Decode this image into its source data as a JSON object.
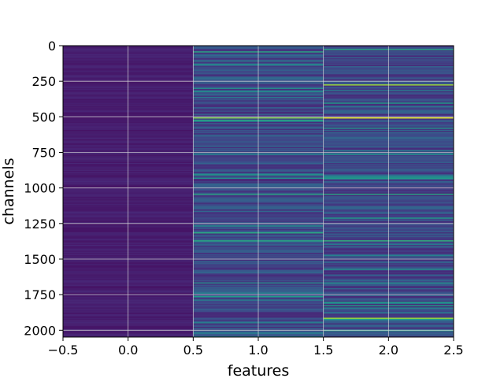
{
  "chart_data": {
    "type": "heatmap",
    "title": "",
    "xlabel": "features",
    "ylabel": "channels",
    "colormap": "viridis",
    "grid": true,
    "grid_color": "#d9d9d9",
    "xlim": [
      -0.5,
      2.5
    ],
    "ylim": [
      2048,
      0
    ],
    "x_ticks": [
      -0.5,
      0.0,
      0.5,
      1.0,
      1.5,
      2.0,
      2.5
    ],
    "x_tick_labels": [
      "−0.5",
      "0.0",
      "0.5",
      "1.0",
      "1.5",
      "2.0",
      "2.5"
    ],
    "y_ticks": [
      0,
      250,
      500,
      750,
      1000,
      1250,
      1500,
      1750,
      2000
    ],
    "y_tick_labels": [
      "0",
      "250",
      "500",
      "750",
      "1000",
      "1250",
      "1500",
      "1750",
      "2000"
    ],
    "columns": [
      {
        "feature": 0,
        "base_level": 0.08,
        "highlights": []
      },
      {
        "feature": 1,
        "base_level": 0.22,
        "highlights": [
          {
            "channel": 45,
            "value": 0.6
          },
          {
            "channel": 110,
            "value": 0.45
          },
          {
            "channel": 300,
            "value": 0.5
          },
          {
            "channel": 505,
            "value": 0.8
          },
          {
            "channel": 520,
            "value": 0.6
          },
          {
            "channel": 760,
            "value": 0.45
          },
          {
            "channel": 910,
            "value": 0.55
          },
          {
            "channel": 1040,
            "value": 0.6
          },
          {
            "channel": 1370,
            "value": 0.6
          },
          {
            "channel": 1670,
            "value": 0.5
          },
          {
            "channel": 1760,
            "value": 0.55
          },
          {
            "channel": 1950,
            "value": 0.45
          }
        ]
      },
      {
        "feature": 2,
        "base_level": 0.22,
        "highlights": [
          {
            "channel": 30,
            "value": 0.6
          },
          {
            "channel": 275,
            "value": 0.85
          },
          {
            "channel": 400,
            "value": 0.55
          },
          {
            "channel": 510,
            "value": 0.95
          },
          {
            "channel": 760,
            "value": 0.5
          },
          {
            "channel": 930,
            "value": 0.55
          },
          {
            "channel": 1040,
            "value": 0.6
          },
          {
            "channel": 1370,
            "value": 0.65
          },
          {
            "channel": 1570,
            "value": 0.5
          },
          {
            "channel": 1670,
            "value": 0.5
          },
          {
            "channel": 1830,
            "value": 0.55
          },
          {
            "channel": 1915,
            "value": 0.85
          },
          {
            "channel": 2000,
            "value": 0.55
          }
        ]
      }
    ]
  }
}
